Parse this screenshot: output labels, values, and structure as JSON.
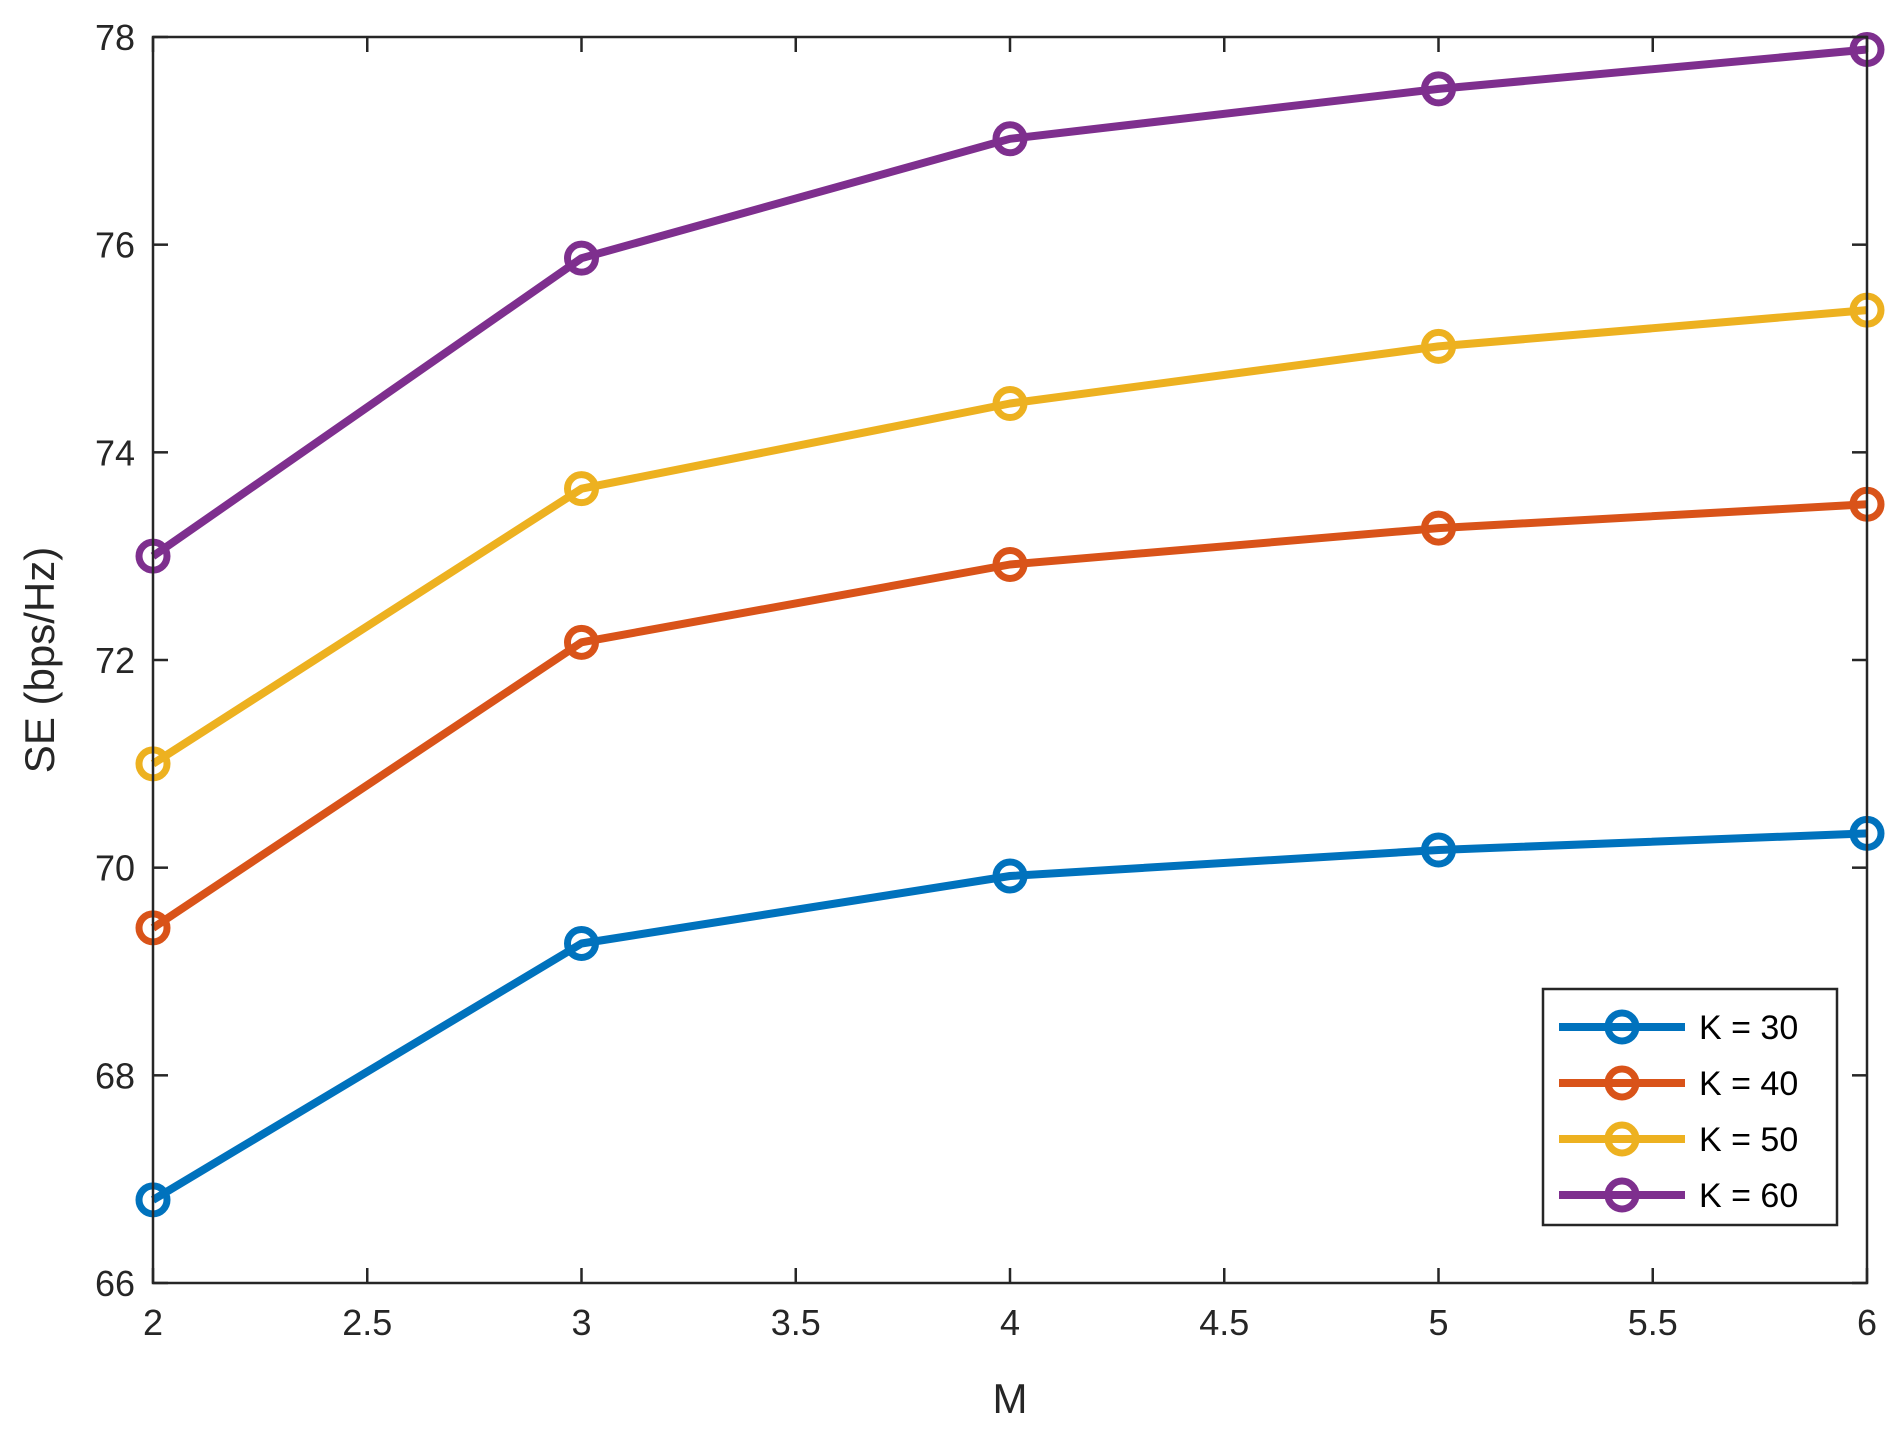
{
  "chart_data": {
    "type": "line",
    "xlabel": "M",
    "ylabel": "SE (bps/Hz)",
    "x": [
      2,
      3,
      4,
      5,
      6
    ],
    "xlim": [
      2,
      6
    ],
    "ylim": [
      66,
      78
    ],
    "xticks": [
      2,
      2.5,
      3,
      3.5,
      4,
      4.5,
      5,
      5.5,
      6
    ],
    "yticks": [
      66,
      68,
      70,
      72,
      74,
      76,
      78
    ],
    "grid": false,
    "legend_position": "bottom-right",
    "marker": "circle",
    "series": [
      {
        "name": "K = 30",
        "color": "#0072BD",
        "values": [
          66.8,
          69.27,
          69.92,
          70.17,
          70.33
        ]
      },
      {
        "name": "K = 40",
        "color": "#D95319",
        "values": [
          69.42,
          72.17,
          72.92,
          73.27,
          73.5
        ]
      },
      {
        "name": "K = 50",
        "color": "#EDB120",
        "values": [
          71.0,
          73.65,
          74.47,
          75.02,
          75.37
        ]
      },
      {
        "name": "K = 60",
        "color": "#7E2F8E",
        "values": [
          73.0,
          75.87,
          77.02,
          77.5,
          77.88
        ]
      }
    ]
  }
}
